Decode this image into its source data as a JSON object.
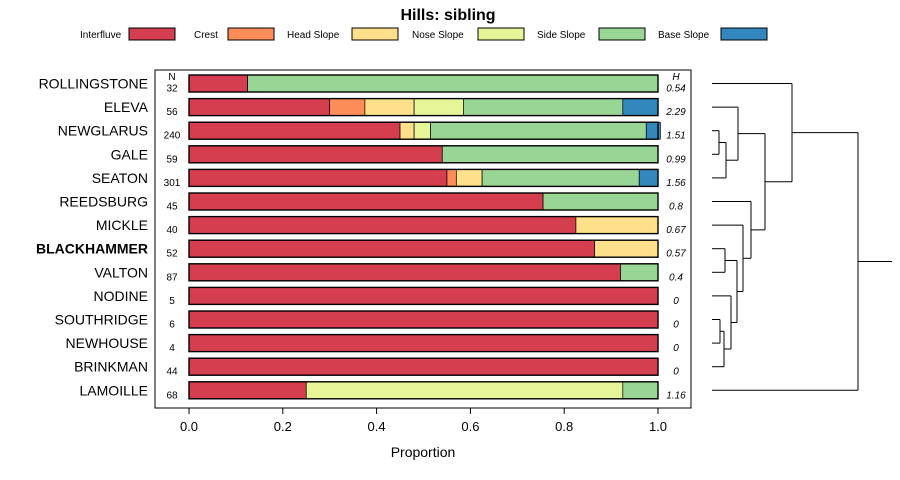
{
  "chart_data": {
    "type": "bar",
    "orientation": "horizontal",
    "stacked": true,
    "title": "Hills: sibling",
    "xlabel": "Proportion",
    "xlim": [
      0,
      1
    ],
    "xticks": [
      "0.0",
      "0.2",
      "0.4",
      "0.6",
      "0.8",
      "1.0"
    ],
    "n_header": "N",
    "h_header": "H",
    "highlight": "BLACKHAMMER",
    "legend": [
      {
        "name": "Interfluve",
        "color": "#d53e4f"
      },
      {
        "name": "Crest",
        "color": "#fc8d59"
      },
      {
        "name": "Head Slope",
        "color": "#fee08b"
      },
      {
        "name": "Nose Slope",
        "color": "#e6f598"
      },
      {
        "name": "Side Slope",
        "color": "#99d594"
      },
      {
        "name": "Base Slope",
        "color": "#3288bd"
      }
    ],
    "categories": [
      "ROLLINGSTONE",
      "ELEVA",
      "NEWGLARUS",
      "GALE",
      "SEATON",
      "REEDSBURG",
      "MICKLE",
      "BLACKHAMMER",
      "VALTON",
      "NODINE",
      "SOUTHRIDGE",
      "NEWHOUSE",
      "BRINKMAN",
      "LAMOILLE"
    ],
    "n": [
      "32",
      "56",
      "240",
      "59",
      "301",
      "45",
      "40",
      "52",
      "87",
      "5",
      "6",
      "4",
      "44",
      "68"
    ],
    "h": [
      "0.54",
      "2.29",
      "1.51",
      "0.99",
      "1.56",
      "0.8",
      "0.67",
      "0.57",
      "0.4",
      "0",
      "0",
      "0",
      "0",
      "1.16"
    ],
    "series": [
      {
        "name": "Interfluve",
        "values": [
          0.125,
          0.3,
          0.45,
          0.54,
          0.55,
          0.755,
          0.825,
          0.865,
          0.92,
          1.0,
          1.0,
          1.0,
          1.0,
          0.25
        ]
      },
      {
        "name": "Crest",
        "values": [
          0,
          0.075,
          0,
          0,
          0.02,
          0,
          0,
          0,
          0,
          0,
          0,
          0,
          0,
          0
        ]
      },
      {
        "name": "Head Slope",
        "values": [
          0,
          0.105,
          0.03,
          0,
          0.055,
          0,
          0.175,
          0.135,
          0,
          0,
          0,
          0,
          0,
          0
        ]
      },
      {
        "name": "Nose Slope",
        "values": [
          0,
          0.105,
          0.035,
          0,
          0,
          0,
          0,
          0,
          0,
          0,
          0,
          0,
          0,
          0.675
        ]
      },
      {
        "name": "Side Slope",
        "values": [
          0.875,
          0.34,
          0.46,
          0.46,
          0.335,
          0.245,
          0,
          0,
          0.08,
          0,
          0,
          0,
          0,
          0.075
        ]
      },
      {
        "name": "Base Slope",
        "values": [
          0,
          0.075,
          0.03,
          0,
          0.04,
          0,
          0,
          0,
          0,
          0,
          0,
          0,
          0,
          0
        ]
      }
    ],
    "dendrogram": {
      "type": "hierarchical-clustering",
      "merges": [
        [
          "NODINE",
          "SOUTHRIDGE"
        ],
        [
          "NEWHOUSE",
          "BRINKMAN"
        ],
        [
          "MICKLE",
          "BLACKHAMMER"
        ],
        [
          "NEWGLARUS",
          "GALE"
        ]
      ]
    }
  }
}
